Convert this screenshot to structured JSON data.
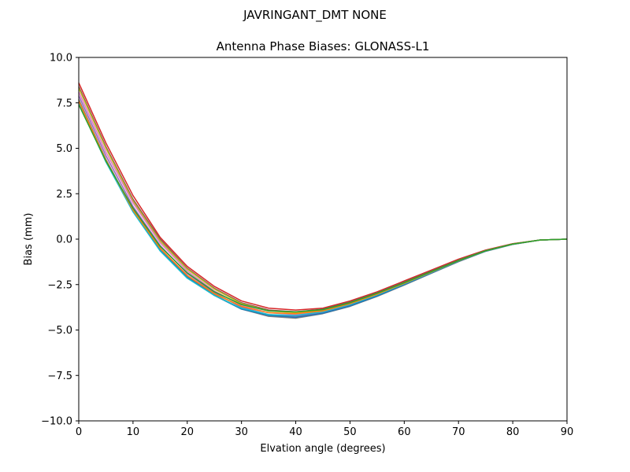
{
  "figure": {
    "suptitle": "JAVRINGANT_DMT  NONE"
  },
  "chart_data": {
    "type": "line",
    "title": "Antenna Phase Biases: GLONASS-L1",
    "xlabel": "Elvation angle (degrees)",
    "ylabel": "Bias (mm)",
    "xlim": [
      0,
      90
    ],
    "ylim": [
      -10,
      10
    ],
    "grid": false,
    "x_ticks": [
      0,
      10,
      20,
      30,
      40,
      50,
      60,
      70,
      80,
      90
    ],
    "x_tick_labels": [
      "0",
      "10",
      "20",
      "30",
      "40",
      "50",
      "60",
      "70",
      "80",
      "90"
    ],
    "y_ticks": [
      10,
      7.5,
      5,
      2.5,
      0,
      -2.5,
      -5,
      -7.5,
      -10
    ],
    "y_tick_labels": [
      "10.0",
      "7.5",
      "5.0",
      "2.5",
      "0.0",
      "−2.5",
      "−5.0",
      "−7.5",
      "−10.0"
    ],
    "x": [
      0,
      5,
      10,
      15,
      20,
      25,
      30,
      35,
      40,
      45,
      50,
      55,
      60,
      65,
      70,
      75,
      80,
      85,
      90
    ],
    "series": [
      {
        "color": "#d62728",
        "values": [
          8.6,
          5.3,
          2.4,
          0.1,
          -1.5,
          -2.6,
          -3.4,
          -3.8,
          -3.9,
          -3.8,
          -3.4,
          -2.9,
          -2.3,
          -1.7,
          -1.1,
          -0.6,
          -0.25,
          -0.05,
          0.0
        ]
      },
      {
        "color": "#8c564b",
        "values": [
          8.4,
          5.1,
          2.2,
          0.0,
          -1.6,
          -2.7,
          -3.5,
          -3.9,
          -4.0,
          -3.85,
          -3.45,
          -2.95,
          -2.35,
          -1.75,
          -1.15,
          -0.62,
          -0.26,
          -0.05,
          0.0
        ]
      },
      {
        "color": "#bcbd22",
        "values": [
          8.3,
          5.0,
          2.1,
          -0.1,
          -1.65,
          -2.75,
          -3.55,
          -3.95,
          -4.05,
          -3.9,
          -3.5,
          -3.0,
          -2.4,
          -1.8,
          -1.18,
          -0.64,
          -0.27,
          -0.05,
          0.0
        ]
      },
      {
        "color": "#e377c2",
        "values": [
          8.1,
          4.8,
          2.0,
          -0.2,
          -1.75,
          -2.85,
          -3.65,
          -4.05,
          -4.15,
          -3.95,
          -3.55,
          -3.05,
          -2.45,
          -1.83,
          -1.2,
          -0.65,
          -0.28,
          -0.05,
          0.0
        ]
      },
      {
        "color": "#9467bd",
        "values": [
          7.9,
          4.6,
          1.8,
          -0.35,
          -1.9,
          -2.95,
          -3.75,
          -4.15,
          -4.25,
          -4.05,
          -3.65,
          -3.1,
          -2.5,
          -1.86,
          -1.22,
          -0.66,
          -0.28,
          -0.05,
          0.0
        ]
      },
      {
        "color": "#7f7f7f",
        "values": [
          7.7,
          4.4,
          1.6,
          -0.5,
          -2.05,
          -3.05,
          -3.85,
          -4.25,
          -4.35,
          -4.1,
          -3.7,
          -3.15,
          -2.53,
          -1.88,
          -1.24,
          -0.67,
          -0.29,
          -0.05,
          0.0
        ]
      },
      {
        "color": "#1f77b4",
        "values": [
          7.6,
          4.3,
          1.55,
          -0.6,
          -2.1,
          -3.1,
          -3.85,
          -4.2,
          -4.3,
          -4.08,
          -3.68,
          -3.13,
          -2.5,
          -1.86,
          -1.22,
          -0.66,
          -0.28,
          -0.05,
          0.0
        ]
      },
      {
        "color": "#17becf",
        "values": [
          7.5,
          4.25,
          1.5,
          -0.65,
          -2.15,
          -3.1,
          -3.8,
          -4.15,
          -4.2,
          -4.0,
          -3.6,
          -3.07,
          -2.46,
          -1.83,
          -1.2,
          -0.65,
          -0.28,
          -0.05,
          0.0
        ]
      },
      {
        "color": "#ff7f0e",
        "values": [
          7.6,
          4.35,
          1.6,
          -0.5,
          -2.0,
          -3.0,
          -3.7,
          -4.05,
          -4.1,
          -3.95,
          -3.55,
          -3.03,
          -2.43,
          -1.81,
          -1.19,
          -0.64,
          -0.27,
          -0.05,
          0.0
        ]
      },
      {
        "color": "#2ca02c",
        "values": [
          7.4,
          4.3,
          1.7,
          -0.4,
          -1.85,
          -2.9,
          -3.6,
          -3.95,
          -4.0,
          -3.88,
          -3.5,
          -2.98,
          -2.4,
          -1.79,
          -1.18,
          -0.64,
          -0.27,
          -0.05,
          0.0
        ]
      }
    ]
  }
}
